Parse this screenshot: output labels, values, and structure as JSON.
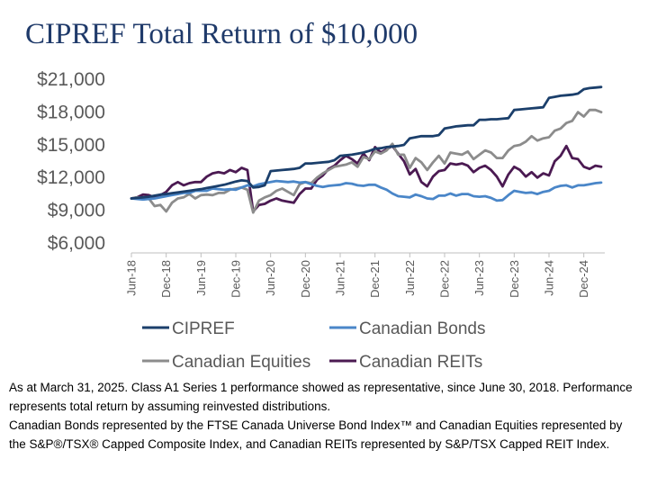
{
  "title": "CIPREF Total Return of $10,000",
  "footnote": {
    "line1": "As at March 31, 2025. Class A1 Series 1 performance showed as representative, since June 30, 2018. Performance represents total return by assuming reinvested distributions.",
    "line2": "Canadian Bonds represented by the FTSE Canada Universe Bond Index™ and Canadian Equities represented by the S&P®/TSX® Capped Composite Index, and Canadian REITs represented by S&P/TSX Capped REIT Index."
  },
  "chart_data": {
    "type": "line",
    "title": "CIPREF Total Return of $10,000",
    "ylim": [
      6000,
      21000
    ],
    "y_ticks": [
      6000,
      9000,
      12000,
      15000,
      18000,
      21000
    ],
    "y_tick_labels": [
      "$6,000",
      "$9,000",
      "$12,000",
      "$15,000",
      "$18,000",
      "$21,000"
    ],
    "x_tick_labels": [
      "Jun-18",
      "Dec-18",
      "Jun-19",
      "Dec-19",
      "Jun-20",
      "Dec-20",
      "Jun-21",
      "Dec-21",
      "Jun-22",
      "Dec-22",
      "Jun-23",
      "Dec-23",
      "Jun-24",
      "Dec-24"
    ],
    "grid": false,
    "legend_position": "bottom",
    "x": [
      "Jun-18",
      "Jul-18",
      "Aug-18",
      "Sep-18",
      "Oct-18",
      "Nov-18",
      "Dec-18",
      "Jan-19",
      "Feb-19",
      "Mar-19",
      "Apr-19",
      "May-19",
      "Jun-19",
      "Jul-19",
      "Aug-19",
      "Sep-19",
      "Oct-19",
      "Nov-19",
      "Dec-19",
      "Jan-20",
      "Feb-20",
      "Mar-20",
      "Apr-20",
      "May-20",
      "Jun-20",
      "Jul-20",
      "Aug-20",
      "Sep-20",
      "Oct-20",
      "Nov-20",
      "Dec-20",
      "Jan-21",
      "Feb-21",
      "Mar-21",
      "Apr-21",
      "May-21",
      "Jun-21",
      "Jul-21",
      "Aug-21",
      "Sep-21",
      "Oct-21",
      "Nov-21",
      "Dec-21",
      "Jan-22",
      "Feb-22",
      "Mar-22",
      "Apr-22",
      "May-22",
      "Jun-22",
      "Jul-22",
      "Aug-22",
      "Sep-22",
      "Oct-22",
      "Nov-22",
      "Dec-22",
      "Jan-23",
      "Feb-23",
      "Mar-23",
      "Apr-23",
      "May-23",
      "Jun-23",
      "Jul-23",
      "Aug-23",
      "Sep-23",
      "Oct-23",
      "Nov-23",
      "Dec-23",
      "Jan-24",
      "Feb-24",
      "Mar-24",
      "Apr-24",
      "May-24",
      "Jun-24",
      "Jul-24",
      "Aug-24",
      "Sep-24",
      "Oct-24",
      "Nov-24",
      "Dec-24",
      "Jan-25",
      "Feb-25",
      "Mar-25"
    ],
    "series": [
      {
        "name": "CIPREF",
        "color": "#1b3f6b",
        "values": [
          10000,
          10050,
          10100,
          10150,
          10250,
          10350,
          10400,
          10480,
          10550,
          10620,
          10700,
          10780,
          10850,
          10950,
          11050,
          11150,
          11250,
          11400,
          11550,
          11650,
          11600,
          11000,
          11050,
          11200,
          12500,
          12550,
          12600,
          12650,
          12700,
          12800,
          13200,
          13200,
          13250,
          13300,
          13350,
          13500,
          13900,
          13950,
          14000,
          14100,
          14200,
          14350,
          14550,
          14600,
          14700,
          14750,
          14800,
          14900,
          15500,
          15600,
          15700,
          15700,
          15700,
          15800,
          16400,
          16500,
          16600,
          16650,
          16700,
          16700,
          17200,
          17200,
          17250,
          17250,
          17300,
          17350,
          18100,
          18150,
          18200,
          18250,
          18300,
          18350,
          19200,
          19300,
          19400,
          19450,
          19500,
          19600,
          20000,
          20100,
          20150,
          20200
        ]
      },
      {
        "name": "Canadian Bonds",
        "color": "#4a86c8",
        "values": [
          10000,
          9950,
          9900,
          9950,
          10000,
          10100,
          10200,
          10300,
          10400,
          10500,
          10500,
          10700,
          10700,
          10700,
          10900,
          10850,
          10800,
          10850,
          10800,
          11000,
          11200,
          11100,
          11300,
          11400,
          11500,
          11600,
          11550,
          11500,
          11550,
          11450,
          11500,
          11300,
          11150,
          11050,
          11150,
          11200,
          11250,
          11400,
          11350,
          11200,
          11150,
          11250,
          11250,
          11000,
          10800,
          10450,
          10200,
          10150,
          10100,
          10350,
          10200,
          10000,
          9950,
          10250,
          10250,
          10450,
          10250,
          10400,
          10400,
          10200,
          10150,
          10200,
          10050,
          9800,
          9850,
          10300,
          10700,
          10600,
          10500,
          10550,
          10400,
          10600,
          10700,
          11000,
          11150,
          11200,
          11000,
          11200,
          11200,
          11300,
          11400,
          11450
        ]
      },
      {
        "name": "Canadian Equities",
        "color": "#8c8c8c",
        "values": [
          10000,
          10100,
          10050,
          10000,
          9300,
          9400,
          8800,
          9600,
          10000,
          10100,
          10400,
          10000,
          10300,
          10350,
          10300,
          10500,
          10500,
          10800,
          10900,
          11000,
          10800,
          8700,
          9800,
          10100,
          10300,
          10700,
          10900,
          10600,
          10300,
          11300,
          11500,
          11400,
          11900,
          12300,
          12600,
          12900,
          13000,
          13100,
          13300,
          12900,
          13800,
          13600,
          14300,
          14100,
          14400,
          15000,
          14000,
          14000,
          12800,
          13700,
          13300,
          12600,
          13300,
          13900,
          13200,
          14200,
          14100,
          14000,
          14300,
          13600,
          14000,
          14400,
          14200,
          13700,
          13700,
          14400,
          14800,
          14900,
          15200,
          15700,
          15300,
          15500,
          15600,
          16200,
          16400,
          16900,
          17100,
          17900,
          17500,
          18100,
          18100,
          17900
        ]
      },
      {
        "name": "Canadian REITs",
        "color": "#4b1a52",
        "values": [
          10000,
          10100,
          10350,
          10300,
          10100,
          10300,
          10600,
          11200,
          11500,
          11200,
          11400,
          11500,
          11500,
          12000,
          12300,
          12400,
          12300,
          12600,
          12400,
          12800,
          12600,
          8800,
          9400,
          9500,
          9800,
          10000,
          9800,
          9700,
          9600,
          10400,
          10900,
          10900,
          11700,
          12100,
          12700,
          13000,
          13500,
          13900,
          13600,
          13200,
          14100,
          13500,
          14700,
          14200,
          14500,
          14800,
          14100,
          13400,
          12200,
          12700,
          11500,
          11100,
          12000,
          12500,
          12600,
          13200,
          13100,
          13200,
          13000,
          12400,
          12800,
          13000,
          12600,
          12000,
          11100,
          12200,
          12900,
          12600,
          12000,
          12400,
          11900,
          12300,
          12100,
          13400,
          13900,
          14800,
          13700,
          13600,
          12900,
          12700,
          13000,
          12900
        ]
      }
    ]
  }
}
